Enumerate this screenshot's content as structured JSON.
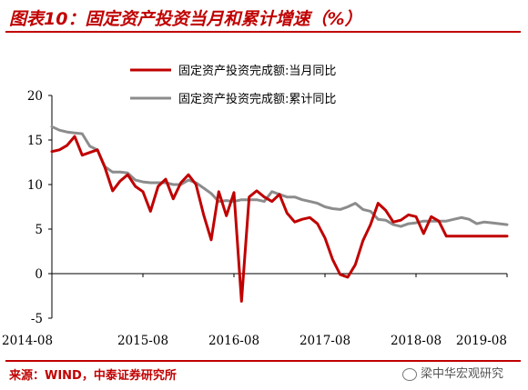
{
  "title": "图表10：固定资产投资当月和累计增速（%）",
  "source": "来源：WIND，中泰证券研究所",
  "watermark": "梁中华宏观研究",
  "chart_data": {
    "type": "line",
    "x_tick_labels": [
      "2014-08",
      "2015-08",
      "2016-08",
      "2017-08",
      "2018-08",
      "2019-08"
    ],
    "ylim": [
      -5,
      20
    ],
    "yticks": [
      -5,
      0,
      5,
      10,
      15,
      20
    ],
    "x": [
      "2014-08",
      "2014-09",
      "2014-10",
      "2014-11",
      "2014-12",
      "2015-01",
      "2015-02",
      "2015-03",
      "2015-04",
      "2015-05",
      "2015-06",
      "2015-07",
      "2015-08",
      "2015-09",
      "2015-10",
      "2015-11",
      "2015-12",
      "2016-01",
      "2016-02",
      "2016-03",
      "2016-04",
      "2016-05",
      "2016-06",
      "2016-07",
      "2016-08",
      "2016-09",
      "2016-10",
      "2016-11",
      "2016-12",
      "2017-01",
      "2017-02",
      "2017-03",
      "2017-04",
      "2017-05",
      "2017-06",
      "2017-07",
      "2017-08",
      "2017-09",
      "2017-10",
      "2017-11",
      "2017-12",
      "2018-01",
      "2018-02",
      "2018-03",
      "2018-04",
      "2018-05",
      "2018-06",
      "2018-07",
      "2018-08",
      "2018-09",
      "2018-10",
      "2018-11",
      "2018-12",
      "2019-01",
      "2019-02",
      "2019-03",
      "2019-04",
      "2019-05",
      "2019-06",
      "2019-07",
      "2019-08"
    ],
    "series": [
      {
        "name": "固定资产投资完成额:当月同比",
        "color": "#c00000",
        "values": [
          13.7,
          13.9,
          14.4,
          15.4,
          13.3,
          13.6,
          13.9,
          11.9,
          9.3,
          10.4,
          11.1,
          9.8,
          9.2,
          7.0,
          9.8,
          10.6,
          8.4,
          10.2,
          11.1,
          10.0,
          6.6,
          3.8,
          9.2,
          6.5,
          9.1,
          -3.1,
          8.6,
          9.3,
          8.6,
          8.1,
          8.9,
          6.8,
          5.8,
          6.1,
          6.3,
          5.6,
          4.0,
          1.6,
          -0.1,
          -0.4,
          1.0,
          3.7,
          5.5,
          7.9,
          7.1,
          5.8,
          6.0,
          6.6,
          6.4,
          4.5,
          6.4,
          5.9,
          4.2,
          4.2,
          4.2,
          4.2,
          4.2,
          4.2,
          4.2,
          4.2,
          4.2
        ],
        "values_note": ""
      },
      {
        "name": "固定资产投资完成额:累计同比",
        "color": "#8c8c8c",
        "values": [
          16.5,
          16.1,
          15.9,
          15.8,
          15.7,
          14.3,
          13.9,
          12.0,
          11.4,
          11.4,
          11.3,
          10.5,
          10.3,
          10.2,
          10.2,
          10.2,
          10.0,
          10.0,
          10.5,
          10.2,
          9.6,
          9.0,
          8.1,
          8.2,
          8.1,
          8.3,
          8.3,
          8.3,
          8.1,
          9.2,
          8.9,
          8.6,
          8.6,
          8.3,
          8.1,
          7.9,
          7.5,
          7.3,
          7.2,
          7.5,
          7.9,
          7.2,
          7.0,
          6.1,
          6.0,
          5.5,
          5.3,
          5.6,
          5.7,
          5.9,
          5.9,
          5.9,
          5.9,
          6.1,
          6.3,
          6.1,
          5.6,
          5.8,
          5.7,
          5.6,
          5.5
        ],
        "values_note": ""
      }
    ]
  }
}
